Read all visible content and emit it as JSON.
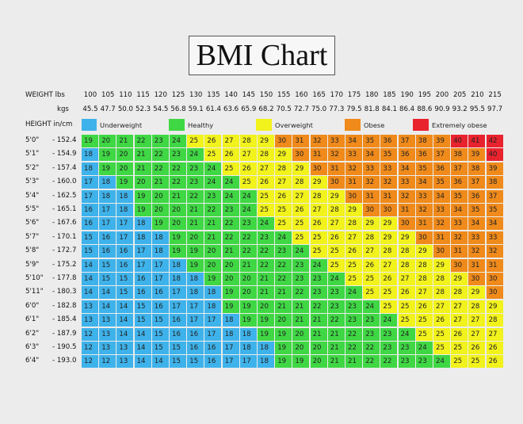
{
  "chart_data": {
    "type": "table",
    "title": "BMI Chart",
    "weight_lbs_label": "WEIGHT lbs",
    "weight_kgs_label": "kgs",
    "height_label": "HEIGHT in/cm",
    "lbs": [
      "100",
      "105",
      "110",
      "115",
      "120",
      "125",
      "130",
      "135",
      "140",
      "145",
      "150",
      "155",
      "160",
      "165",
      "170",
      "175",
      "180",
      "185",
      "190",
      "195",
      "200",
      "205",
      "210",
      "215"
    ],
    "kgs": [
      "45.5",
      "47.7",
      "50.0",
      "52.3",
      "54.5",
      "56.8",
      "59.1",
      "61.4",
      "63.6",
      "65.9",
      "68.2",
      "70.5",
      "72.7",
      "75.0",
      "77.3",
      "79.5",
      "81.8",
      "84.1",
      "86.4",
      "88.6",
      "90.9",
      "93.2",
      "95.5",
      "97.7"
    ],
    "heights": [
      {
        "ft": "5'0\"",
        "cm": "152.4",
        "bmi": [
          19,
          20,
          21,
          22,
          23,
          24,
          25,
          26,
          27,
          28,
          29,
          30,
          31,
          32,
          33,
          34,
          35,
          36,
          37,
          38,
          39,
          40,
          41,
          42
        ]
      },
      {
        "ft": "5'1\"",
        "cm": "154.9",
        "bmi": [
          18,
          19,
          20,
          21,
          22,
          23,
          24,
          25,
          26,
          27,
          28,
          29,
          30,
          31,
          32,
          33,
          34,
          35,
          36,
          36,
          37,
          38,
          39,
          40
        ]
      },
      {
        "ft": "5'2\"",
        "cm": "157.4",
        "bmi": [
          18,
          19,
          20,
          21,
          22,
          22,
          23,
          24,
          25,
          26,
          27,
          28,
          29,
          30,
          31,
          32,
          33,
          33,
          34,
          35,
          36,
          37,
          38,
          39
        ]
      },
      {
        "ft": "5'3\"",
        "cm": "160.0",
        "bmi": [
          17,
          18,
          19,
          20,
          21,
          22,
          23,
          24,
          24,
          25,
          26,
          27,
          28,
          29,
          30,
          31,
          32,
          32,
          33,
          34,
          35,
          36,
          37,
          38
        ]
      },
      {
        "ft": "5'4\"",
        "cm": "162.5",
        "bmi": [
          17,
          18,
          18,
          19,
          20,
          21,
          22,
          23,
          24,
          24,
          25,
          26,
          27,
          28,
          29,
          30,
          31,
          31,
          32,
          33,
          34,
          35,
          36,
          37
        ]
      },
      {
        "ft": "5'5\"",
        "cm": "165.1",
        "bmi": [
          16,
          17,
          18,
          19,
          20,
          20,
          21,
          22,
          23,
          24,
          25,
          25,
          26,
          27,
          28,
          29,
          30,
          30,
          31,
          32,
          33,
          34,
          35,
          35
        ]
      },
      {
        "ft": "5'6\"",
        "cm": "167.6",
        "bmi": [
          16,
          17,
          17,
          18,
          19,
          20,
          21,
          21,
          22,
          23,
          24,
          25,
          25,
          26,
          27,
          28,
          29,
          29,
          30,
          31,
          32,
          33,
          34,
          34
        ]
      },
      {
        "ft": "5'7\"",
        "cm": "170.1",
        "bmi": [
          15,
          16,
          17,
          18,
          18,
          19,
          20,
          21,
          22,
          22,
          23,
          24,
          25,
          25,
          26,
          27,
          28,
          29,
          29,
          30,
          31,
          32,
          33,
          33
        ]
      },
      {
        "ft": "5'8\"",
        "cm": "172.7",
        "bmi": [
          15,
          16,
          16,
          17,
          18,
          19,
          19,
          20,
          21,
          22,
          22,
          23,
          24,
          25,
          25,
          26,
          27,
          28,
          28,
          29,
          30,
          31,
          32,
          32
        ]
      },
      {
        "ft": "5'9\"",
        "cm": "175.2",
        "bmi": [
          14,
          15,
          16,
          17,
          17,
          18,
          19,
          20,
          20,
          21,
          22,
          22,
          23,
          24,
          25,
          25,
          26,
          27,
          28,
          28,
          29,
          30,
          31,
          31
        ]
      },
      {
        "ft": "5'10\"",
        "cm": "177.8",
        "bmi": [
          14,
          15,
          15,
          16,
          17,
          18,
          18,
          19,
          20,
          20,
          21,
          22,
          23,
          23,
          24,
          25,
          25,
          26,
          27,
          28,
          28,
          29,
          30,
          30
        ]
      },
      {
        "ft": "5'11\"",
        "cm": "180.3",
        "bmi": [
          14,
          14,
          15,
          16,
          16,
          17,
          18,
          18,
          19,
          20,
          21,
          21,
          22,
          23,
          23,
          24,
          25,
          25,
          26,
          27,
          28,
          28,
          29,
          30
        ]
      },
      {
        "ft": "6'0\"",
        "cm": "182.8",
        "bmi": [
          13,
          14,
          14,
          15,
          16,
          17,
          17,
          18,
          19,
          19,
          20,
          21,
          21,
          22,
          23,
          23,
          24,
          25,
          25,
          26,
          27,
          27,
          28,
          29
        ]
      },
      {
        "ft": "6'1\"",
        "cm": "185.4",
        "bmi": [
          13,
          13,
          14,
          15,
          15,
          16,
          17,
          17,
          18,
          19,
          19,
          20,
          21,
          21,
          22,
          23,
          23,
          24,
          25,
          25,
          26,
          27,
          27,
          28
        ]
      },
      {
        "ft": "6'2\"",
        "cm": "187.9",
        "bmi": [
          12,
          13,
          14,
          14,
          15,
          16,
          16,
          17,
          18,
          18,
          19,
          19,
          20,
          21,
          21,
          22,
          23,
          23,
          24,
          25,
          25,
          26,
          27,
          27
        ]
      },
      {
        "ft": "6'3\"",
        "cm": "190.5",
        "bmi": [
          12,
          13,
          13,
          14,
          15,
          15,
          16,
          16,
          17,
          18,
          18,
          19,
          20,
          20,
          21,
          22,
          22,
          23,
          23,
          24,
          25,
          25,
          26,
          26
        ]
      },
      {
        "ft": "6'4\"",
        "cm": "193.0",
        "bmi": [
          12,
          12,
          13,
          14,
          14,
          15,
          15,
          16,
          17,
          17,
          18,
          19,
          19,
          20,
          21,
          21,
          22,
          22,
          23,
          23,
          24,
          25,
          25,
          26
        ]
      }
    ],
    "categories": [
      {
        "name": "Underweight",
        "color": "#3eb2ea",
        "min": 0,
        "max": 18
      },
      {
        "name": "Healthy",
        "color": "#3fd744",
        "min": 19,
        "max": 24
      },
      {
        "name": "Overweight",
        "color": "#f2f21c",
        "min": 25,
        "max": 29
      },
      {
        "name": "Obese",
        "color": "#ef8a1b",
        "min": 30,
        "max": 39
      },
      {
        "name": "Extremely obese",
        "color": "#e8232e",
        "min": 40,
        "max": 99
      }
    ]
  }
}
